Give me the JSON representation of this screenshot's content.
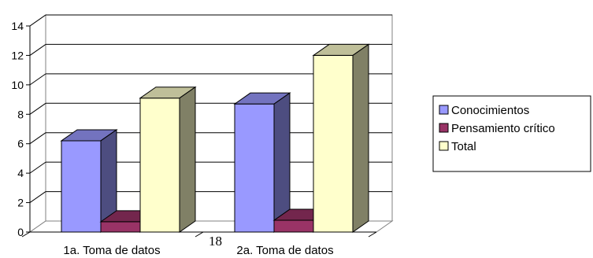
{
  "chart_data": {
    "type": "bar",
    "three_d": true,
    "categories": [
      "1a. Toma de datos",
      "2a. Toma de datos"
    ],
    "series": [
      {
        "name": "Conocimientos",
        "values": [
          6.2,
          8.7
        ],
        "color": "#9999ff",
        "side_color": "#4d4d80",
        "top_color": "#7373bf"
      },
      {
        "name": "Pensamiento crítico",
        "values": [
          0.7,
          0.8
        ],
        "color": "#993366",
        "side_color": "#4d1a33",
        "top_color": "#73264d"
      },
      {
        "name": "Total",
        "values": [
          9.1,
          12.0
        ],
        "color": "#ffffcc",
        "side_color": "#808066",
        "top_color": "#bfbf99"
      }
    ],
    "ylim": [
      0,
      14
    ],
    "yticks": [
      0,
      2,
      4,
      6,
      8,
      10,
      12,
      14
    ],
    "y_tick_labels": [
      "0",
      "2",
      "4",
      "6",
      "8",
      "10",
      "12",
      "14"
    ],
    "grid": true,
    "legend_position": "right",
    "title": "",
    "xlabel": "",
    "ylabel": ""
  },
  "footer": {
    "page_number": "18"
  }
}
